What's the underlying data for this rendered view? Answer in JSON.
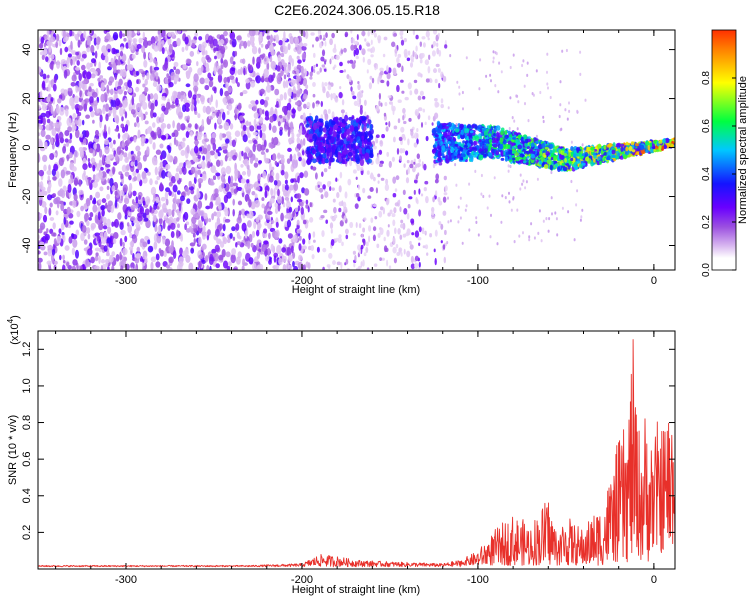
{
  "title": "C2E6.2024.306.05.15.R18",
  "colors": {
    "snr_line": "#e8302a",
    "colormap": [
      "#ffffff",
      "#d9b8f0",
      "#9b4fe0",
      "#6a00ff",
      "#1414ff",
      "#00c8ff",
      "#00ff40",
      "#ffff00",
      "#ff3000"
    ]
  },
  "chart_data": [
    {
      "type": "heatmap",
      "title": "",
      "xlabel": "Height of straight line (km)",
      "ylabel": "Frequency (Hz)",
      "xlim": [
        -350,
        12
      ],
      "ylim": [
        -50,
        48
      ],
      "xticks": [
        -300,
        -200,
        -100,
        0
      ],
      "yticks": [
        -40,
        -20,
        0,
        20,
        40
      ],
      "colorbar": {
        "label": "Normalized spectral amplitude",
        "range": [
          0.0,
          1.0
        ],
        "ticks": [
          0.0,
          0.2,
          0.4,
          0.6,
          0.8
        ]
      },
      "features": [
        {
          "x_range": [
            -350,
            -197
          ],
          "freq_range": [
            -50,
            48
          ],
          "amplitude": 0.15
        },
        {
          "x_range": [
            -197,
            -118
          ],
          "freq_range": [
            -50,
            48
          ],
          "amplitude": 0.08
        },
        {
          "x_range": [
            -195,
            -160
          ],
          "freq_range": [
            -5,
            10
          ],
          "amplitude": 0.3
        },
        {
          "x_range": [
            -125,
            12
          ],
          "freq_track": "0 to -6 to 2",
          "amplitude": 0.9
        }
      ],
      "grid": false
    },
    {
      "type": "line",
      "title": "",
      "xlabel": "Height of straight line (km)",
      "ylabel": "SNR (10 * v/v)",
      "y_multiplier": "(x10^4)",
      "y_multiplier_base": "(x10",
      "y_multiplier_exp": "4",
      "y_multiplier_close": ")",
      "xlim": [
        -350,
        12
      ],
      "ylim": [
        0,
        1.3
      ],
      "xticks": [
        -300,
        -200,
        -100,
        0
      ],
      "yticks": [
        0.2,
        0.4,
        0.6,
        0.8,
        1.0,
        1.2
      ],
      "envelope": {
        "x": [
          -350,
          -230,
          -200,
          -190,
          -180,
          -170,
          -150,
          -120,
          -110,
          -100,
          -90,
          -80,
          -70,
          -60,
          -55,
          -50,
          -45,
          -40,
          -35,
          -30,
          -25,
          -20,
          -15,
          -12,
          -10,
          -8,
          -5,
          -2,
          0,
          5,
          12
        ],
        "y": [
          0.02,
          0.02,
          0.03,
          0.08,
          0.07,
          0.05,
          0.04,
          0.03,
          0.05,
          0.1,
          0.22,
          0.3,
          0.25,
          0.4,
          0.2,
          0.3,
          0.25,
          0.22,
          0.3,
          0.35,
          0.5,
          0.7,
          0.8,
          1.28,
          0.9,
          0.75,
          0.8,
          0.7,
          0.75,
          0.8,
          0.9
        ]
      },
      "grid": false
    }
  ]
}
